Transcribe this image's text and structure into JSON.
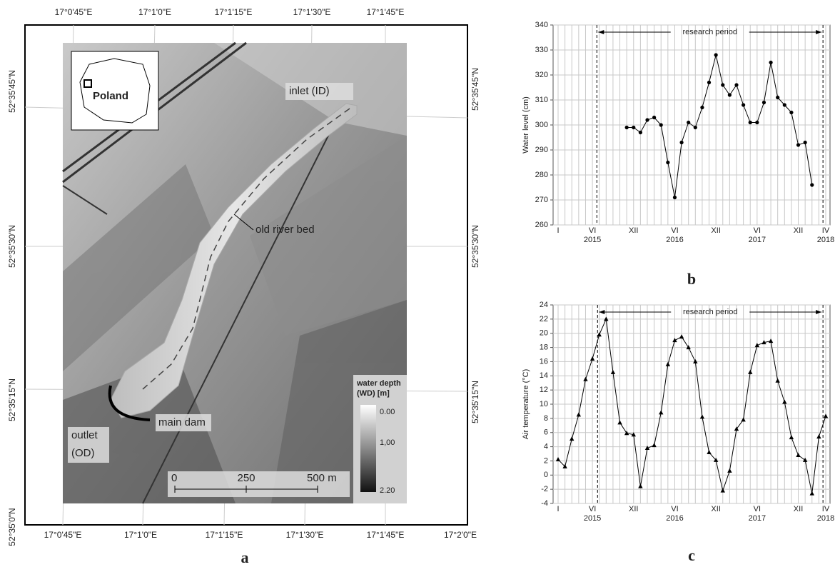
{
  "map": {
    "top_ticks": [
      "17°0'45\"E",
      "17°1'0\"E",
      "17°1'15\"E",
      "17°1'30\"E",
      "17°1'45\"E"
    ],
    "bottom_ticks": [
      "17°0'45\"E",
      "17°1'0\"E",
      "17°1'15\"E",
      "17°1'30\"E",
      "17°1'45\"E",
      "17°2'0\"E"
    ],
    "left_ticks": [
      "52°35'45\"N",
      "52°35'30\"N",
      "52°35'15\"N",
      "52°35'0\"N"
    ],
    "right_ticks": [
      "52°35'45\"N",
      "52°35'30\"N",
      "52°35'15\"N"
    ],
    "inset_label": "Poland",
    "inlet": "inlet (ID)",
    "old_river_bed": "old river bed",
    "main_dam": "main dam",
    "outlet": [
      "outlet",
      "(OD)"
    ],
    "legend_title": [
      "water depth",
      "(WD) [m]"
    ],
    "legend_ticks": [
      "0.00",
      "1,00",
      "2.20"
    ],
    "scale_bar": [
      "0",
      "250",
      "500 m"
    ],
    "caption": "a"
  },
  "chart_data": [
    {
      "type": "line",
      "marker": "circle",
      "color": "#000000",
      "caption": "b",
      "y_label": "Water level (cm)",
      "annotation": "research period",
      "categories": [
        "I",
        null,
        null,
        null,
        null,
        "VI",
        null,
        null,
        null,
        null,
        null,
        "XII",
        null,
        null,
        null,
        null,
        null,
        "VI",
        null,
        null,
        null,
        null,
        null,
        "XII",
        null,
        null,
        null,
        null,
        null,
        "VI",
        null,
        null,
        null,
        null,
        null,
        "XII",
        null,
        null,
        null,
        "IV"
      ],
      "year_labels": [
        null,
        null,
        null,
        null,
        null,
        "2015",
        null,
        null,
        null,
        null,
        null,
        null,
        null,
        null,
        null,
        null,
        null,
        "2016",
        null,
        null,
        null,
        null,
        null,
        null,
        null,
        null,
        null,
        null,
        null,
        "2017",
        null,
        null,
        null,
        null,
        null,
        null,
        null,
        null,
        null,
        "2018"
      ],
      "values": [
        null,
        null,
        null,
        null,
        null,
        null,
        null,
        null,
        null,
        null,
        299,
        299,
        297,
        302,
        303,
        300,
        285,
        271,
        293,
        301,
        299,
        307,
        317,
        328,
        316,
        312,
        316,
        308,
        301,
        301,
        309,
        325,
        311,
        308,
        305,
        292,
        293,
        276,
        null,
        null
      ],
      "ylim": [
        260,
        340
      ],
      "yticks": [
        260,
        270,
        280,
        290,
        300,
        310,
        320,
        330,
        340
      ],
      "grid": true
    },
    {
      "type": "line",
      "marker": "triangle",
      "color": "#000000",
      "caption": "c",
      "y_label": "Air temperature (°C)",
      "annotation": "research period",
      "categories": [
        "I",
        null,
        null,
        null,
        null,
        "VI",
        null,
        null,
        null,
        null,
        null,
        "XII",
        null,
        null,
        null,
        null,
        null,
        "VI",
        null,
        null,
        null,
        null,
        null,
        "XII",
        null,
        null,
        null,
        null,
        null,
        "VI",
        null,
        null,
        null,
        null,
        null,
        "XII",
        null,
        null,
        null,
        "IV"
      ],
      "year_labels": [
        null,
        null,
        null,
        null,
        null,
        "2015",
        null,
        null,
        null,
        null,
        null,
        null,
        null,
        null,
        null,
        null,
        null,
        "2016",
        null,
        null,
        null,
        null,
        null,
        null,
        null,
        null,
        null,
        null,
        null,
        "2017",
        null,
        null,
        null,
        null,
        null,
        null,
        null,
        null,
        null,
        "2018"
      ],
      "values": [
        2.2,
        1.2,
        5.1,
        8.5,
        13.5,
        16.4,
        19.8,
        22,
        14.5,
        7.4,
        5.9,
        5.7,
        -1.6,
        3.8,
        4.2,
        8.8,
        15.6,
        19,
        19.5,
        18,
        16,
        8.2,
        3.2,
        2.1,
        -2.2,
        0.6,
        6.5,
        7.8,
        14.5,
        18.3,
        18.7,
        18.9,
        13.3,
        10.3,
        5.3,
        2.8,
        2.1,
        -2.6,
        5.4,
        8.3
      ],
      "ylim": [
        -4,
        24
      ],
      "yticks": [
        -4,
        -2,
        0,
        2,
        4,
        6,
        8,
        10,
        12,
        14,
        16,
        18,
        20,
        22,
        24
      ],
      "grid": true
    }
  ]
}
